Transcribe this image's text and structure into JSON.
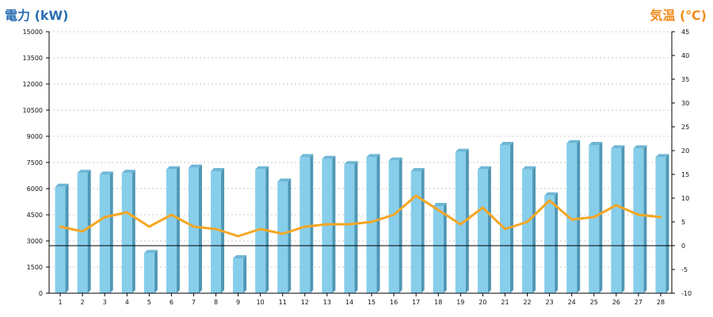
{
  "chart_data": {
    "type": "bar",
    "categories": [
      "1",
      "2",
      "3",
      "4",
      "5",
      "6",
      "7",
      "8",
      "9",
      "10",
      "11",
      "12",
      "13",
      "14",
      "15",
      "16",
      "17",
      "18",
      "19",
      "20",
      "21",
      "22",
      "23",
      "24",
      "25",
      "26",
      "27",
      "28"
    ],
    "y_left": {
      "label": "電力 (kW)",
      "ticks": [
        "0",
        "1500",
        "3000",
        "4500",
        "6000",
        "7500",
        "9000",
        "10500",
        "12000",
        "13500",
        "15000"
      ],
      "min": 0,
      "max": 15000
    },
    "y_right": {
      "label": "気温 (℃)",
      "ticks": [
        "-10",
        "-5",
        "0",
        "5",
        "10",
        "15",
        "20",
        "25",
        "30",
        "35",
        "40",
        "45"
      ],
      "min": -10,
      "max": 45
    },
    "series": [
      {
        "type": "bar",
        "axis": "left",
        "values": [
          6100,
          6900,
          6800,
          6900,
          2300,
          7100,
          7200,
          7000,
          2000,
          7100,
          6400,
          7800,
          7700,
          7400,
          7800,
          7600,
          7000,
          5000,
          8100,
          7100,
          8500,
          7100,
          5600,
          8600,
          8500,
          8300,
          8300,
          7800
        ],
        "color": "#87ceeb"
      },
      {
        "type": "line",
        "axis": "right",
        "values": [
          4,
          3,
          6,
          7,
          4,
          6.5,
          4,
          3.5,
          2,
          3.5,
          2.5,
          4,
          4.5,
          4.5,
          5,
          6.5,
          10.5,
          7.5,
          4.5,
          8,
          3.5,
          5,
          9.5,
          5.5,
          6,
          8.5,
          6.5,
          6
        ],
        "color": "#f5a623"
      }
    ],
    "grid": true,
    "legend": "none"
  },
  "colors": {
    "left_title": "#2a6fb2",
    "right_title": "#f28c1e",
    "bar_front": "#87ceeb",
    "bar_side": "#4f97b5",
    "bar_top": "#6fb7d6",
    "line": "#f5a623"
  }
}
